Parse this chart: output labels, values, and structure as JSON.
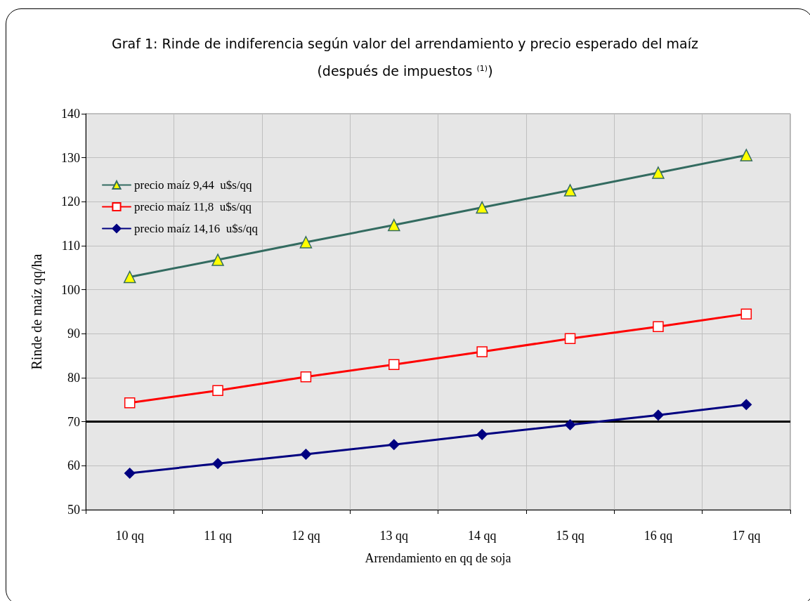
{
  "chart_data": {
    "type": "line",
    "title": "Graf 1: Rinde de indiferencia según valor del arrendamiento y precio esperado del maíz",
    "subtitle": "(después de impuestos $^{(1)}$)",
    "xlabel": "Arrendamiento en qq de soja",
    "ylabel": "Rinde de maíz qq/ha",
    "categories": [
      "10 qq",
      "11 qq",
      "12 qq",
      "13 qq",
      "14 qq",
      "15 qq",
      "16 qq",
      "17 qq"
    ],
    "series": [
      {
        "name": "precio maíz 9,44  u$s/qq",
        "color": "#336b60",
        "marker": "triangle",
        "values": [
          102.9,
          106.8,
          110.8,
          114.7,
          118.7,
          122.6,
          126.6,
          130.6
        ]
      },
      {
        "name": "precio maíz 11,8  u$s/qq",
        "color": "#ff0000",
        "marker": "square",
        "values": [
          74.3,
          77.1,
          80.2,
          83.0,
          85.9,
          88.9,
          91.6,
          94.5
        ]
      },
      {
        "name": "precio maíz 14,16  u$s/qq",
        "color": "#000080",
        "marker": "diamond",
        "values": [
          58.3,
          60.5,
          62.6,
          64.8,
          67.1,
          69.3,
          71.5,
          73.9
        ]
      }
    ],
    "ylim": [
      50,
      140
    ],
    "yticks": [
      50,
      60,
      70,
      80,
      90,
      100,
      110,
      120,
      130,
      140
    ],
    "ref_lines": [
      {
        "axis": "y",
        "value": 70,
        "color": "#000000"
      }
    ],
    "grid": true,
    "legend": "top left",
    "line_style": "solid"
  }
}
